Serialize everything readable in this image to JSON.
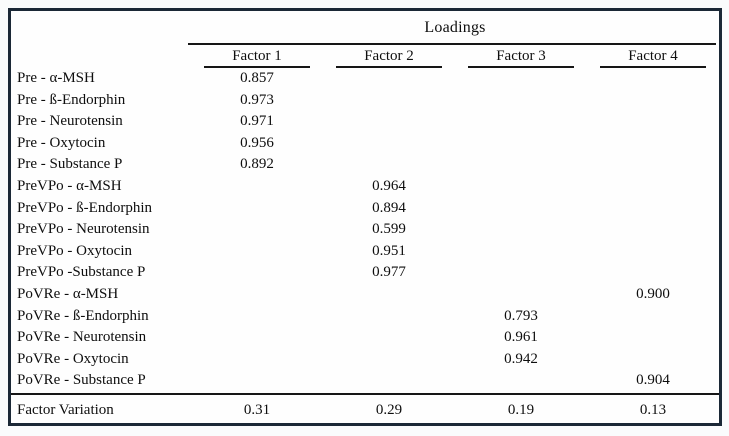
{
  "page": {
    "outer_background": "#fafbfc",
    "border_color": "#1b2836",
    "text_color": "#0e0e0e"
  },
  "table": {
    "title": "Loadings",
    "columns": [
      "Factor 1",
      "Factor 2",
      "Factor 3",
      "Factor 4"
    ],
    "rows": [
      {
        "label": "Pre - α-MSH",
        "values": [
          "0.857",
          "",
          "",
          ""
        ]
      },
      {
        "label": "Pre - ß-Endorphin",
        "values": [
          "0.973",
          "",
          "",
          ""
        ]
      },
      {
        "label": "Pre - Neurotensin",
        "values": [
          "0.971",
          "",
          "",
          ""
        ]
      },
      {
        "label": "Pre - Oxytocin",
        "values": [
          "0.956",
          "",
          "",
          ""
        ]
      },
      {
        "label": "Pre - Substance P",
        "values": [
          "0.892",
          "",
          "",
          ""
        ]
      },
      {
        "label": "PreVPo - α-MSH",
        "values": [
          "",
          "0.964",
          "",
          ""
        ]
      },
      {
        "label": "PreVPo - ß-Endorphin",
        "values": [
          "",
          "0.894",
          "",
          ""
        ]
      },
      {
        "label": "PreVPo - Neurotensin",
        "values": [
          "",
          "0.599",
          "",
          ""
        ]
      },
      {
        "label": "PreVPo - Oxytocin",
        "values": [
          "",
          "0.951",
          "",
          ""
        ]
      },
      {
        "label": "PreVPo -Substance P",
        "values": [
          "",
          "0.977",
          "",
          ""
        ]
      },
      {
        "label": "PoVRe - α-MSH",
        "values": [
          "",
          "",
          "",
          "0.900"
        ]
      },
      {
        "label": "PoVRe - ß-Endorphin",
        "values": [
          "",
          "",
          "0.793",
          ""
        ]
      },
      {
        "label": "PoVRe - Neurotensin",
        "values": [
          "",
          "",
          "0.961",
          ""
        ]
      },
      {
        "label": "PoVRe - Oxytocin",
        "values": [
          "",
          "",
          "0.942",
          ""
        ]
      },
      {
        "label": "PoVRe - Substance P",
        "values": [
          "",
          "",
          "",
          "0.904"
        ]
      }
    ],
    "footer": {
      "label": "Factor Variation",
      "values": [
        "0.31",
        "0.29",
        "0.19",
        "0.13"
      ]
    }
  }
}
